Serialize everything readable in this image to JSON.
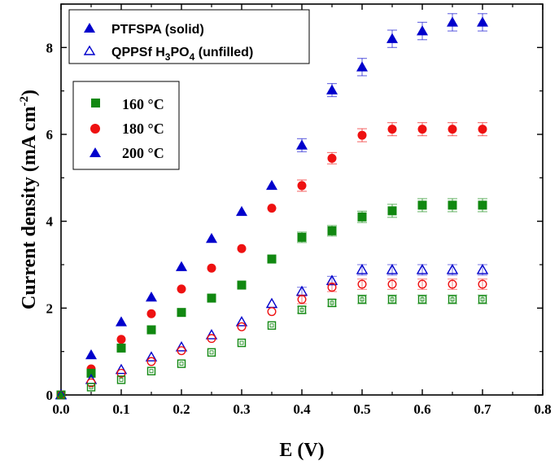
{
  "chart_data": {
    "type": "scatter",
    "xlabel": "E (V)",
    "ylabel_main": "Current density (mA cm",
    "ylabel_sup": "-2",
    "ylabel_close": ")",
    "xlim": [
      0,
      0.8
    ],
    "ylim": [
      0,
      9
    ],
    "x_ticks": [
      "0.0",
      "0.1",
      "0.2",
      "0.3",
      "0.4",
      "0.5",
      "0.6",
      "0.7",
      "0.8"
    ],
    "y_ticks": [
      "0",
      "2",
      "4",
      "6",
      "8"
    ],
    "legend_type": {
      "solid_label": "PTFSPA (solid)",
      "open_label_pre": "QPPSf H",
      "open_label_sub1": "3",
      "open_label_mid": "PO",
      "open_label_sub2": "4",
      "open_label_post": " (unfilled)"
    },
    "legend_temp": [
      "160 °C",
      "180 °C",
      "200 °C"
    ],
    "x": [
      0.0,
      0.05,
      0.1,
      0.15,
      0.2,
      0.25,
      0.3,
      0.35,
      0.4,
      0.45,
      0.5,
      0.55,
      0.6,
      0.65,
      0.7
    ],
    "series": [
      {
        "name": "200 °C",
        "marker": "triangle",
        "filled": true,
        "color": "#0000cc",
        "values": [
          0,
          0.92,
          1.68,
          2.25,
          2.95,
          3.6,
          4.22,
          4.82,
          5.75,
          7.02,
          7.55,
          8.2,
          8.38,
          8.58,
          8.58
        ],
        "errors": [
          0,
          0,
          0,
          0,
          0,
          0,
          0,
          0,
          0.15,
          0.15,
          0.2,
          0.2,
          0.2,
          0.2,
          0.2
        ]
      },
      {
        "name": "180 °C",
        "marker": "circle",
        "filled": true,
        "color": "#ee1111",
        "values": [
          0,
          0.6,
          1.28,
          1.87,
          2.44,
          2.92,
          3.37,
          4.3,
          4.82,
          5.45,
          5.98,
          6.12,
          6.12,
          6.12,
          6.12
        ],
        "errors": [
          0,
          0,
          0,
          0,
          0,
          0,
          0,
          0,
          0.13,
          0.13,
          0.15,
          0.15,
          0.15,
          0.15,
          0.15
        ]
      },
      {
        "name": "160 °C",
        "marker": "square",
        "filled": true,
        "color": "#118811",
        "values": [
          0,
          0.5,
          1.08,
          1.5,
          1.9,
          2.23,
          2.53,
          3.13,
          3.63,
          3.78,
          4.1,
          4.24,
          4.37,
          4.37,
          4.37
        ],
        "errors": [
          0,
          0,
          0,
          0,
          0,
          0,
          0,
          0,
          0.12,
          0.12,
          0.13,
          0.15,
          0.15,
          0.15,
          0.15
        ]
      },
      {
        "name": "200 °C (unfilled)",
        "marker": "triangle",
        "filled": false,
        "color": "#0000cc",
        "values": [
          0,
          0.35,
          0.58,
          0.87,
          1.1,
          1.38,
          1.68,
          2.1,
          2.38,
          2.63,
          2.88,
          2.88,
          2.88,
          2.88,
          2.88
        ],
        "errors": [
          0,
          0,
          0,
          0,
          0,
          0,
          0,
          0,
          0.1,
          0.1,
          0.12,
          0.12,
          0.12,
          0.12,
          0.12
        ]
      },
      {
        "name": "180 °C (unfilled)",
        "marker": "circle",
        "filled": false,
        "color": "#ee1111",
        "values": [
          0,
          0.28,
          0.5,
          0.77,
          1.02,
          1.3,
          1.57,
          1.92,
          2.2,
          2.48,
          2.55,
          2.55,
          2.55,
          2.55,
          2.55
        ],
        "errors": [
          0,
          0,
          0,
          0,
          0,
          0,
          0,
          0,
          0.1,
          0.1,
          0.12,
          0.12,
          0.12,
          0.12,
          0.12
        ]
      },
      {
        "name": "160 °C (unfilled)",
        "marker": "square",
        "filled": false,
        "color": "#118811",
        "values": [
          0,
          0.18,
          0.35,
          0.55,
          0.72,
          0.98,
          1.2,
          1.6,
          1.96,
          2.12,
          2.2,
          2.2,
          2.2,
          2.2,
          2.2
        ],
        "errors": [
          0,
          0,
          0,
          0,
          0,
          0,
          0,
          0,
          0.08,
          0.08,
          0.1,
          0.1,
          0.1,
          0.1,
          0.1
        ]
      }
    ],
    "legend_color": "#000000",
    "grid": false
  }
}
